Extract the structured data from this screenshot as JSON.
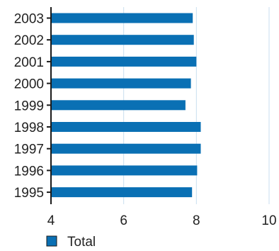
{
  "chart_data": {
    "type": "bar",
    "orientation": "horizontal",
    "categories": [
      "2003",
      "2002",
      "2001",
      "2000",
      "1999",
      "1998",
      "1997",
      "1996",
      "1995"
    ],
    "series": [
      {
        "name": "Total",
        "color": "#0a70b4",
        "values": [
          7.9,
          7.93,
          8.0,
          7.85,
          7.7,
          8.12,
          8.12,
          8.02,
          7.88
        ]
      }
    ],
    "xlim": [
      4,
      10
    ],
    "xticks": [
      "4",
      "6",
      "8",
      "10"
    ],
    "grid": "vertical",
    "legend": "bottom-left"
  },
  "colors": {
    "bar": "#0a70b4",
    "gridline": "#c9def0",
    "axis": "#1a1a1a"
  }
}
